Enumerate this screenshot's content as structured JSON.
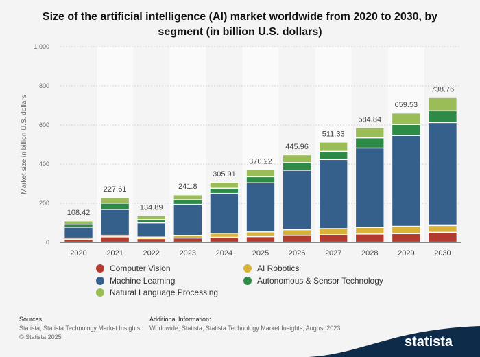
{
  "chart_data": {
    "type": "bar",
    "stacked": true,
    "title": "Size of the artificial intelligence (AI) market worldwide from 2020 to 2030, by segment (in billion U.S. dollars)",
    "xlabel": "",
    "ylabel": "Market size in billion U.S. dollars",
    "ylim": [
      0,
      1000
    ],
    "yticks": [
      "0",
      "200",
      "400",
      "600",
      "800",
      "1,000"
    ],
    "grid": true,
    "legend": "bottom",
    "categories": [
      "2020",
      "2021",
      "2022",
      "2023",
      "2024",
      "2025",
      "2026",
      "2027",
      "2028",
      "2029",
      "2030"
    ],
    "totals": [
      "108.42",
      "227.61",
      "134.89",
      "241.8",
      "305.91",
      "370.22",
      "445.96",
      "511.33",
      "584.84",
      "659.53",
      "738.76"
    ],
    "series": [
      {
        "name": "Computer Vision",
        "color": "#b23a2e",
        "values": [
          13,
          27,
          18,
          21,
          25,
          28,
          34,
          37.5,
          41,
          43,
          50
        ]
      },
      {
        "name": "AI Robotics",
        "color": "#d9b23a",
        "values": [
          8,
          8,
          8,
          12,
          20,
          24,
          29,
          31.5,
          34,
          38,
          35
        ]
      },
      {
        "name": "Machine Learning",
        "color": "#36608c",
        "values": [
          55,
          132,
          72,
          160,
          204,
          251,
          304,
          353,
          406,
          464,
          526
        ]
      },
      {
        "name": "Autonomous & Sensor Technology",
        "color": "#2e8a47",
        "values": [
          15,
          32,
          17,
          23,
          26,
          31,
          39,
          42,
          52,
          56,
          60
        ]
      },
      {
        "name": "Natural Language Processing",
        "color": "#9bbd58",
        "values": [
          17.42,
          28.61,
          19.89,
          25.8,
          30.91,
          36.22,
          39.96,
          47.33,
          51.84,
          58.53,
          67.76
        ]
      }
    ]
  },
  "footer": {
    "sources_label": "Sources",
    "sources_text": "Statista; Statista Technology Market Insights",
    "copyright": "© Statista 2025",
    "additional_label": "Additional Information:",
    "additional_text": "Worldwide; Statista; Statista Technology Market Insights; August 2023",
    "logo": "statista"
  }
}
